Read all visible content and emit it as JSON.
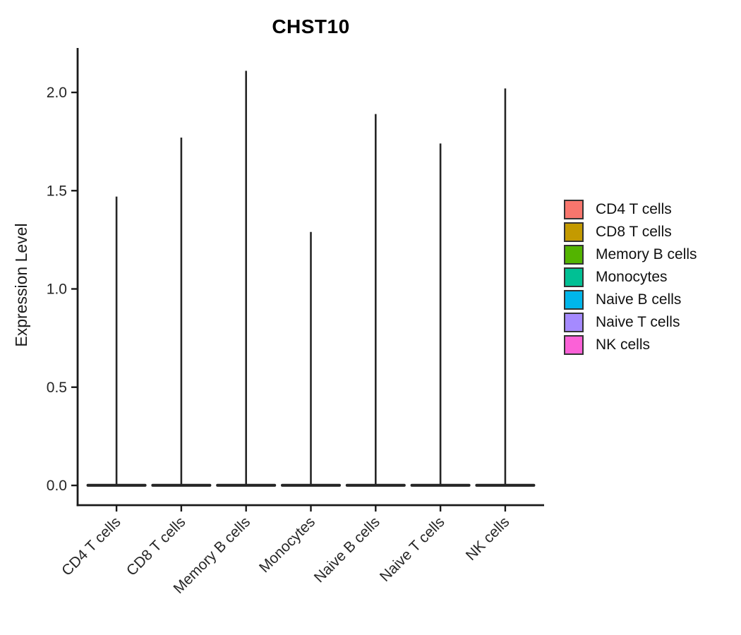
{
  "chart_data": {
    "type": "violin",
    "title": "CHST10",
    "xlabel": "",
    "ylabel": "Expression Level",
    "ylim": [
      0,
      2.25
    ],
    "y_ticks": [
      "0.0",
      "0.5",
      "1.0",
      "1.5",
      "2.0"
    ],
    "grid": false,
    "legend_position": "right",
    "x_label_rotation_deg": 45,
    "bulk_value": 0.0,
    "categories": [
      {
        "label": "CD4 T cells",
        "color": "#F8766D",
        "peak_expression": 1.47
      },
      {
        "label": "CD8 T cells",
        "color": "#C49A00",
        "peak_expression": 1.77
      },
      {
        "label": "Memory B cells",
        "color": "#53B400",
        "peak_expression": 2.11
      },
      {
        "label": "Monocytes",
        "color": "#00C094",
        "peak_expression": 1.29
      },
      {
        "label": "Naive B cells",
        "color": "#00B6EB",
        "peak_expression": 1.89
      },
      {
        "label": "Naive T cells",
        "color": "#A58AFF",
        "peak_expression": 1.74
      },
      {
        "label": "NK cells",
        "color": "#FB61D7",
        "peak_expression": 2.02
      }
    ],
    "style": {
      "axis_color": "#1a1a1a",
      "violin_color": "#262626",
      "tick_label_color": "#262626"
    }
  }
}
